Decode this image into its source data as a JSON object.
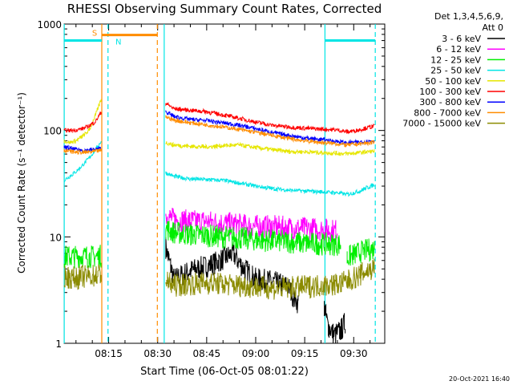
{
  "chart_data": {
    "type": "line",
    "title": "RHESSI Observing Summary Count Rates, Corrected",
    "xlabel": "Start Time (06-Oct-05 08:01:22)",
    "ylabel": "Corrected Count Rate (s⁻¹ detector⁻¹)",
    "yscale": "log",
    "ylim": [
      1,
      1000
    ],
    "xlim_minutes_after_0800": [
      1.37,
      99.5
    ],
    "x_ticks": [
      {
        "minute": 15,
        "label": "08:15"
      },
      {
        "minute": 30,
        "label": "08:30"
      },
      {
        "minute": 45,
        "label": "08:45"
      },
      {
        "minute": 60,
        "label": "09:00"
      },
      {
        "minute": 75,
        "label": "09:15"
      },
      {
        "minute": 90,
        "label": "09:30"
      }
    ],
    "y_ticks": [
      {
        "value": 1,
        "label": "1"
      },
      {
        "value": 10,
        "label": "10"
      },
      {
        "value": 100,
        "label": "100"
      },
      {
        "value": 1000,
        "label": "1000"
      }
    ],
    "legend_header": [
      "Det 1,3,4,5,6,9,",
      "Att 0"
    ],
    "legend_placement": "right",
    "series": [
      {
        "name": "3 - 6 keV",
        "color": "#000000",
        "segments": [
          {
            "x": [
              32.5,
              33.5,
              35,
              37,
              40,
              44,
              47,
              50,
              53,
              56,
              60,
              65,
              70,
              72,
              73
            ],
            "y": [
              8,
              6,
              4,
              4.3,
              4.8,
              5.2,
              5.6,
              6.2,
              7,
              5.2,
              4,
              3.8,
              3.4,
              2.6,
              2.4
            ]
          },
          {
            "x": [
              81,
              82,
              84,
              86,
              87.5
            ],
            "y": [
              2.2,
              1.5,
              1.2,
              1.3,
              1.6
            ]
          }
        ]
      },
      {
        "name": "6 - 12 keV",
        "color": "#ff00ff",
        "segments": [
          {
            "x": [
              32.5,
              35,
              40,
              45,
              50,
              55,
              60,
              65,
              70,
              75,
              80,
              84,
              85
            ],
            "y": [
              16,
              14.5,
              14,
              14,
              13.5,
              13,
              12.6,
              12.5,
              12.2,
              12,
              11.8,
              11.5,
              11.5
            ]
          }
        ]
      },
      {
        "name": "12 - 25 keV",
        "color": "#00ee00",
        "segments": [
          {
            "x": [
              1.4,
              5,
              8,
              10,
              12,
              12.8
            ],
            "y": [
              6.5,
              6.5,
              6.6,
              6.5,
              6.6,
              6.6
            ]
          },
          {
            "x": [
              32.5,
              35,
              40,
              45,
              50,
              55,
              60,
              65,
              70,
              75,
              80,
              84,
              86
            ],
            "y": [
              12,
              11,
              10.5,
              10.3,
              10,
              9.8,
              9.4,
              9.2,
              9,
              8.7,
              8.6,
              8.5,
              8.5
            ]
          },
          {
            "x": [
              88,
              90,
              92,
              94,
              96.5
            ],
            "y": [
              6.3,
              6.8,
              7.2,
              7.5,
              7.8
            ]
          }
        ]
      },
      {
        "name": "25 - 50 keV",
        "color": "#00e5e5",
        "segments": [
          {
            "x": [
              1.4,
              3,
              5,
              7,
              9,
              11,
              12.8
            ],
            "y": [
              34,
              37,
              41,
              47,
              55,
              66,
              80
            ]
          },
          {
            "x": [
              32.5,
              35,
              40,
              45,
              50,
              55,
              60,
              65,
              70,
              75,
              80,
              85,
              88,
              90,
              92,
              94,
              96.5
            ],
            "y": [
              40,
              37,
              35,
              34.5,
              34,
              32,
              30,
              28.5,
              27.5,
              27,
              26.5,
              26,
              25,
              26,
              27,
              29,
              31
            ]
          }
        ]
      },
      {
        "name": "50 - 100 keV",
        "color": "#e6e600",
        "segments": [
          {
            "x": [
              1.4,
              3,
              5,
              7,
              9,
              11,
              12.8
            ],
            "y": [
              80,
              77,
              80,
              88,
              100,
              140,
              200
            ]
          },
          {
            "x": [
              32.5,
              35,
              40,
              45,
              50,
              55,
              60,
              65,
              70,
              75,
              80,
              85,
              88,
              90,
              92,
              94,
              96.5
            ],
            "y": [
              77,
              73,
              71,
              70,
              72,
              73,
              69,
              66,
              63.5,
              63,
              62,
              61,
              60.5,
              61,
              62,
              63,
              64
            ]
          }
        ]
      },
      {
        "name": "100 - 300 keV",
        "color": "#ff0000",
        "segments": [
          {
            "x": [
              1.4,
              3,
              5,
              7,
              9,
              11,
              12.8
            ],
            "y": [
              100,
              100,
              101,
              104,
              110,
              122,
              150
            ]
          },
          {
            "x": [
              32.5,
              35,
              40,
              45,
              50,
              55,
              60,
              65,
              70,
              75,
              80,
              85,
              88,
              90,
              92,
              94,
              96.5
            ],
            "y": [
              180,
              160,
              155,
              150,
              140,
              130,
              120,
              112,
              108,
              105,
              103,
              101,
              97,
              99,
              102,
              106,
              110
            ]
          }
        ]
      },
      {
        "name": "300 - 800 keV",
        "color": "#0000ff",
        "segments": [
          {
            "x": [
              1.4,
              4,
              7,
              10,
              12.8
            ],
            "y": [
              70,
              67,
              65,
              66,
              68
            ]
          },
          {
            "x": [
              32.5,
              35,
              40,
              45,
              50,
              55,
              60,
              65,
              70,
              75,
              80,
              85,
              88,
              90,
              92,
              94,
              96.5
            ],
            "y": [
              150,
              135,
              127,
              124,
              118,
              112,
              104,
              96,
              90,
              85,
              82,
              79,
              76,
              77,
              78,
              79,
              80
            ]
          }
        ]
      },
      {
        "name": "800 - 7000 keV",
        "color": "#ff8c00",
        "segments": [
          {
            "x": [
              1.4,
              4,
              7,
              10,
              12.8
            ],
            "y": [
              65,
              63,
              62,
              63,
              65
            ]
          },
          {
            "x": [
              32.5,
              35,
              40,
              45,
              50,
              55,
              60,
              65,
              70,
              75,
              80,
              85,
              88,
              90,
              92,
              94,
              96.5
            ],
            "y": [
              135,
              125,
              118,
              113,
              108,
              102,
              96,
              90,
              84,
              80,
              77,
              75,
              73,
              74,
              75,
              76,
              77
            ]
          }
        ]
      },
      {
        "name": "7000 - 15000 keV",
        "color": "#8b8b00",
        "segments": [
          {
            "x": [
              1.4,
              4,
              7,
              10,
              12.8
            ],
            "y": [
              4.3,
              4.1,
              4.2,
              4.3,
              4.5
            ]
          },
          {
            "x": [
              32.5,
              35,
              40,
              45,
              50,
              55,
              60,
              65,
              70,
              75,
              80,
              85,
              88,
              90,
              92,
              94,
              96.5
            ],
            "y": [
              3.8,
              3.5,
              3.6,
              3.7,
              3.6,
              3.5,
              3.4,
              3.3,
              3.3,
              3.4,
              3.5,
              3.6,
              3.8,
              4.1,
              4.4,
              4.8,
              5.1
            ]
          }
        ]
      }
    ],
    "annotations": [
      {
        "type": "vline",
        "x": 1.4,
        "color": "#00e5e5",
        "style": "solid"
      },
      {
        "type": "vline",
        "x": 12.9,
        "color": "#ff8c00",
        "style": "solid"
      },
      {
        "type": "vline",
        "x": 14.8,
        "color": "#00e5e5",
        "style": "dashed"
      },
      {
        "type": "vline",
        "x": 29.9,
        "color": "#ff8c00",
        "style": "dashed"
      },
      {
        "type": "vline",
        "x": 32.0,
        "color": "#00e5e5",
        "style": "solid"
      },
      {
        "type": "vline",
        "x": 81.2,
        "color": "#00e5e5",
        "style": "solid"
      },
      {
        "type": "vline",
        "x": 96.6,
        "color": "#00e5e5",
        "style": "dashed"
      },
      {
        "type": "hband",
        "x0": 1.4,
        "x1": 12.9,
        "y": 700,
        "color": "#00e5e5"
      },
      {
        "type": "hband",
        "x0": 12.9,
        "x1": 29.9,
        "y": 790,
        "color": "#ff8c00"
      },
      {
        "type": "hband",
        "x0": 81.2,
        "x1": 96.6,
        "y": 700,
        "color": "#00e5e5"
      },
      {
        "type": "label",
        "x": 10.7,
        "y": 830,
        "text": "S",
        "color": "#ff8c00"
      },
      {
        "type": "label",
        "x": 18.0,
        "y": 690,
        "text": "N",
        "color": "#00e5e5"
      }
    ],
    "footer_stamp": "20-Oct-2021 16:40"
  }
}
